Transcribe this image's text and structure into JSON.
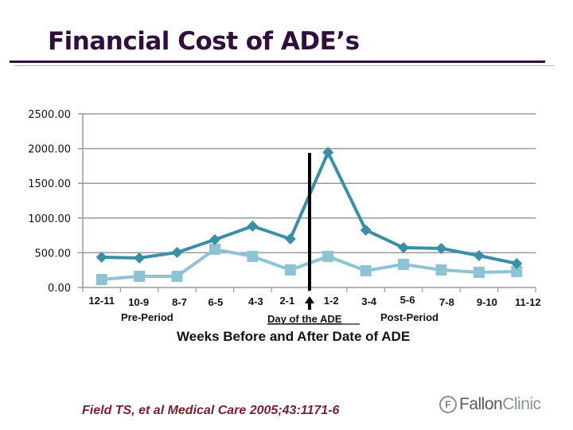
{
  "slide": {
    "title": "Financial Cost of ADE’s",
    "citation": "Field TS, et al Medical Care 2005;43:1171-6",
    "logo": {
      "mark": "F",
      "name_part1": "Fallon",
      "name_part2": "Clinic"
    }
  },
  "colors": {
    "title": "#2e0f3e",
    "series_dark": "#3a8ea6",
    "series_light": "#8ec3d6",
    "citation": "#7a1f2e",
    "gridline": "#9a9a9a"
  },
  "chart_data": {
    "type": "line",
    "title": "",
    "xlabel": "Weeks Before and After Date of ADE",
    "ylabel": "",
    "ylim": [
      0,
      2500
    ],
    "yticks": [
      "0.00",
      "500.00",
      "1000.00",
      "1500.00",
      "2000.00",
      "2500.00"
    ],
    "grid": true,
    "legend": "none",
    "categories": [
      "12-11",
      "10-9",
      "8-7",
      "6-5",
      "4-3",
      "2-1",
      "1-2",
      "3-4",
      "5-6",
      "7-8",
      "9-10",
      "11-12"
    ],
    "series": [
      {
        "name": "Series 1 (dark, diamond markers)",
        "marker": "diamond",
        "values": [
          436,
          425,
          505,
          688,
          883,
          700,
          1945,
          826,
          573,
          562,
          459,
          344
        ]
      },
      {
        "name": "Series 2 (light, square markers)",
        "marker": "square",
        "values": [
          115,
          160,
          160,
          550,
          447,
          252,
          447,
          241,
          333,
          252,
          218,
          229
        ]
      }
    ],
    "annotations": {
      "pre_period": "Pre-Period",
      "day_of_ade": "Day of the ADE",
      "post_period": "Post-Period",
      "marker_line": "vertical line between 2-1 and 1-2 with up arrow"
    }
  }
}
